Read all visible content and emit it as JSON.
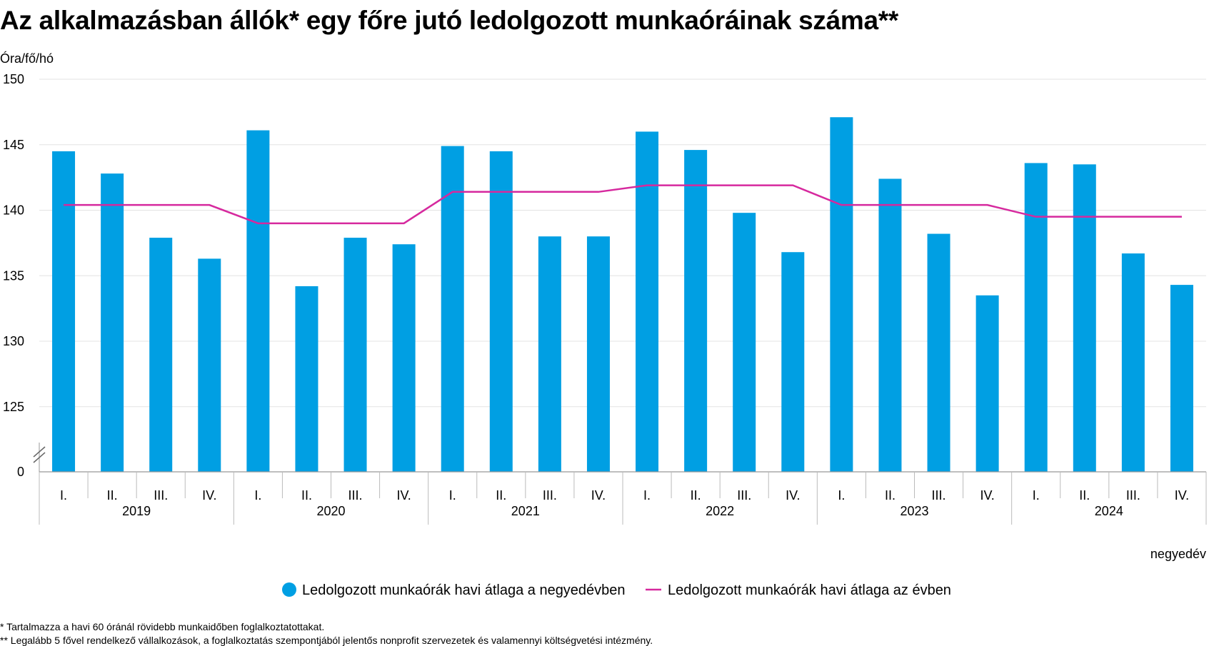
{
  "title": "Az alkalmazásban állók* egy főre jutó ledolgozott munkaóráinak száma**",
  "footnotes": [
    "* Tartalmazza a havi 60 óránál rövidebb munkaidőben foglalkoztatottakat.",
    "** Legalább 5 fővel rendelkező vállalkozások, a foglalkoztatás szempontjából jelentős nonprofit szervezetek és valamennyi költségvetési intézmény."
  ],
  "chart_data": {
    "type": "bar",
    "ylabel": "Óra/fő/hó",
    "xlabel": "negyedév",
    "y_ticks": [
      "150",
      "145",
      "140",
      "135",
      "130",
      "125",
      "0"
    ],
    "ylim": [
      120,
      150
    ],
    "axis_break": true,
    "grid": true,
    "legend_position": "bottom",
    "years": [
      "2019",
      "2020",
      "2021",
      "2022",
      "2023",
      "2024"
    ],
    "quarters": [
      "I.",
      "II.",
      "III.",
      "IV."
    ],
    "series": [
      {
        "name": "Ledolgozott munkaórák havi átlaga a negyedévben",
        "type": "bar",
        "color": "#009fe3",
        "values": [
          144.5,
          142.8,
          137.9,
          136.3,
          146.1,
          134.2,
          137.9,
          137.4,
          144.9,
          144.5,
          138.0,
          138.0,
          146.0,
          144.6,
          139.8,
          136.8,
          147.1,
          142.4,
          138.2,
          133.5,
          143.6,
          143.5,
          136.7,
          134.3
        ]
      },
      {
        "name": "Ledolgozott munkaórák havi átlaga az évben",
        "type": "line",
        "color": "#d6299e",
        "values": [
          140.4,
          140.4,
          140.4,
          140.4,
          139.0,
          139.0,
          139.0,
          139.0,
          141.4,
          141.4,
          141.4,
          141.4,
          141.9,
          141.9,
          141.9,
          141.9,
          140.4,
          140.4,
          140.4,
          140.4,
          139.5,
          139.5,
          139.5,
          139.5
        ]
      }
    ]
  }
}
